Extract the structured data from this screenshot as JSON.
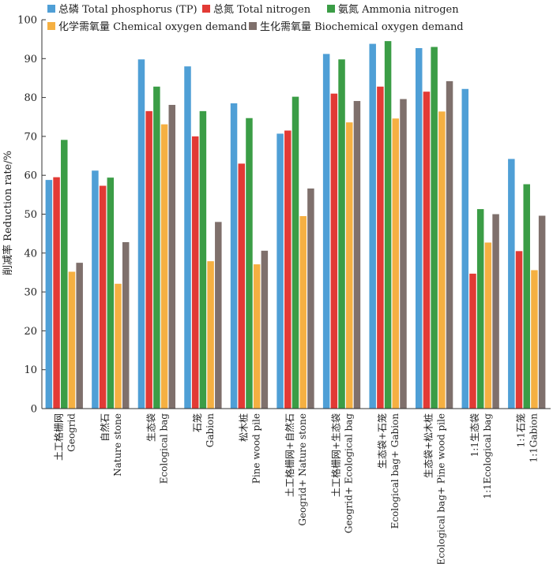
{
  "chart_data": {
    "type": "bar",
    "ylabel": "削减率 Reduction rate/%",
    "ylim": [
      0,
      100
    ],
    "yticks": [
      0,
      10,
      20,
      30,
      40,
      50,
      60,
      70,
      80,
      90,
      100
    ],
    "grid": false,
    "legend_position": "top",
    "categories": [
      {
        "zh": "土工格栅网",
        "en": "Geogrid"
      },
      {
        "zh": "自然石",
        "en": "Nature stone"
      },
      {
        "zh": "生态袋",
        "en": "Ecological bag"
      },
      {
        "zh": "石笼",
        "en": "Gabion"
      },
      {
        "zh": "松木桩",
        "en": "Pine wood pile"
      },
      {
        "zh": "土工格栅网+自然石",
        "en": "Geogrid+ Nature stone"
      },
      {
        "zh": "土工格栅网+生态袋",
        "en": "Geogrid+ Ecological bag"
      },
      {
        "zh": "生态袋+石笼",
        "en": "Ecological bag+ Gabion"
      },
      {
        "zh": "生态袋+松木桩",
        "en": "Ecological bag+ Pine wood pile"
      },
      {
        "zh": "1:1生态袋",
        "en": "1:1Ecological bag"
      },
      {
        "zh": "1:1石笼",
        "en": "1:1Gabion"
      }
    ],
    "series": [
      {
        "name": "总磷 Total phosphorus (TP)",
        "color": "#4f9fd6",
        "values": [
          58.8,
          61.2,
          89.8,
          88.0,
          78.5,
          70.7,
          91.2,
          93.8,
          92.7,
          82.2,
          64.2
        ]
      },
      {
        "name": "总氮 Total nitrogen",
        "color": "#e23a35",
        "values": [
          59.5,
          57.3,
          76.5,
          70.0,
          63.0,
          71.5,
          81.0,
          82.8,
          81.5,
          34.7,
          40.5
        ]
      },
      {
        "name": "氨氮 Ammonia nitrogen",
        "color": "#3b9d46",
        "values": [
          69.1,
          59.4,
          82.8,
          76.5,
          74.7,
          80.2,
          89.8,
          94.5,
          93.0,
          51.3,
          57.7
        ]
      },
      {
        "name": "化学需氧量 Chemical oxygen demand",
        "color": "#f5b042",
        "values": [
          35.2,
          32.1,
          73.1,
          37.9,
          37.1,
          49.5,
          73.6,
          74.6,
          76.4,
          42.7,
          35.6
        ]
      },
      {
        "name": "生化需氧量 Biochemical oxygen demand",
        "color": "#7f706c",
        "values": [
          37.5,
          42.8,
          78.1,
          48.0,
          40.6,
          56.6,
          79.1,
          79.6,
          84.2,
          50.0,
          49.6
        ]
      }
    ]
  }
}
